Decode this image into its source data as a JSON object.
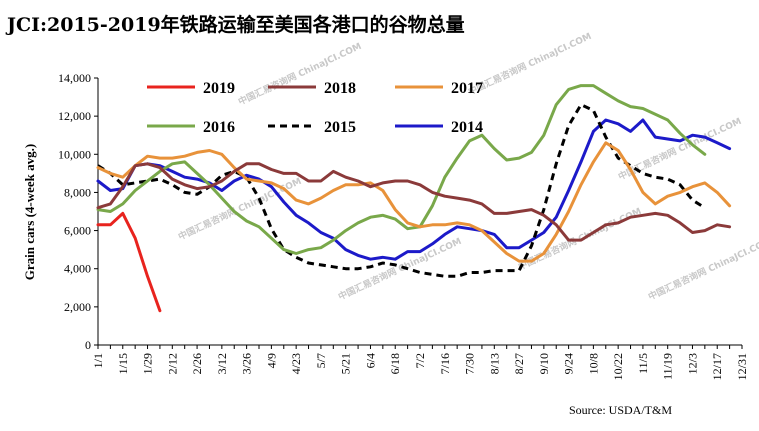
{
  "chart_data": {
    "type": "line",
    "title": "JCI:2015-2019年铁路运输至美国各港口的谷物总量",
    "ylabel": "Grain cars (4-week avg.)",
    "xlabel": "",
    "source": "Source: USDA/T&M",
    "watermark": "中国汇易咨询网 ChinaJCI.COM",
    "ylim": [
      0,
      14000
    ],
    "yticks": [
      "0",
      "2,000",
      "4,000",
      "6,000",
      "8,000",
      "10,000",
      "12,000",
      "14,000"
    ],
    "xticks": [
      "1/1",
      "1/15",
      "1/29",
      "2/12",
      "2/26",
      "3/12",
      "3/26",
      "4/9",
      "4/23",
      "5/7",
      "5/21",
      "6/4",
      "6/18",
      "7/2",
      "7/16",
      "7/30",
      "8/13",
      "8/27",
      "9/10",
      "9/24",
      "10/8",
      "10/22",
      "11/5",
      "11/19",
      "12/3",
      "12/17",
      "12/31"
    ],
    "x_unit": "week index (0 = 1/1, 52 = 12/31)",
    "xlim": [
      0,
      52
    ],
    "series": [
      {
        "name": "2019",
        "color": "#e8231e",
        "dash": "solid",
        "x": [
          0,
          1,
          2,
          3,
          4,
          5
        ],
        "y": [
          6300,
          6300,
          6900,
          5600,
          3600,
          1800
        ]
      },
      {
        "name": "2018",
        "color": "#8b3a3a",
        "dash": "solid",
        "x": [
          0,
          1,
          2,
          3,
          4,
          5,
          6,
          7,
          8,
          9,
          10,
          11,
          12,
          13,
          14,
          15,
          16,
          17,
          18,
          19,
          20,
          21,
          22,
          23,
          24,
          25,
          26,
          27,
          28,
          29,
          30,
          31,
          32,
          33,
          34,
          35,
          36,
          37,
          38,
          39,
          40,
          41,
          42,
          43,
          44,
          45,
          46,
          47,
          48,
          49,
          50,
          51
        ],
        "y": [
          7200,
          7400,
          8300,
          9400,
          9500,
          9300,
          8700,
          8400,
          8200,
          8300,
          8600,
          9100,
          9500,
          9500,
          9200,
          9000,
          9000,
          8600,
          8600,
          9100,
          8800,
          8600,
          8300,
          8500,
          8600,
          8600,
          8400,
          8000,
          7800,
          7700,
          7600,
          7400,
          6900,
          6900,
          7000,
          7100,
          6800,
          6300,
          5500,
          5500,
          5900,
          6300,
          6400,
          6700,
          6800,
          6900,
          6800,
          6400,
          5900,
          6000,
          6300,
          6200
        ]
      },
      {
        "name": "2017",
        "color": "#e8923a",
        "dash": "solid",
        "x": [
          0,
          1,
          2,
          3,
          4,
          5,
          6,
          7,
          8,
          9,
          10,
          11,
          12,
          13,
          14,
          15,
          16,
          17,
          18,
          19,
          20,
          21,
          22,
          23,
          24,
          25,
          26,
          27,
          28,
          29,
          30,
          31,
          32,
          33,
          34,
          35,
          36,
          37,
          38,
          39,
          40,
          41,
          42,
          43,
          44,
          45,
          46,
          47,
          48,
          49,
          50,
          51
        ],
        "y": [
          9300,
          9000,
          8800,
          9400,
          9900,
          9800,
          9800,
          9900,
          10100,
          10200,
          10000,
          9300,
          8700,
          8600,
          8500,
          8200,
          7600,
          7400,
          7700,
          8100,
          8400,
          8400,
          8500,
          8100,
          7100,
          6400,
          6200,
          6300,
          6300,
          6400,
          6300,
          6000,
          5400,
          4800,
          4400,
          4400,
          4800,
          5800,
          7000,
          8400,
          9600,
          10600,
          10200,
          9200,
          8000,
          7400,
          7800,
          8000,
          8300,
          8500,
          8000,
          7300
        ]
      },
      {
        "name": "2016",
        "color": "#79a84a",
        "dash": "solid",
        "x": [
          0,
          1,
          2,
          3,
          4,
          5,
          6,
          7,
          8,
          9,
          10,
          11,
          12,
          13,
          14,
          15,
          16,
          17,
          18,
          19,
          20,
          21,
          22,
          23,
          24,
          25,
          26,
          27,
          28,
          29,
          30,
          31,
          32,
          33,
          34,
          35,
          36,
          37,
          38,
          39,
          40,
          41,
          42,
          43,
          44,
          45,
          46,
          47,
          48,
          49,
          50,
          51
        ],
        "y": [
          7100,
          7000,
          7400,
          8100,
          8600,
          9100,
          9500,
          9600,
          9000,
          8400,
          7700,
          7000,
          6500,
          6200,
          5600,
          5000,
          4800,
          5000,
          5100,
          5500,
          6000,
          6400,
          6700,
          6800,
          6600,
          6100,
          6200,
          7300,
          8800,
          9800,
          10700,
          11000,
          10300,
          9700,
          9800,
          10100,
          11000,
          12600,
          13400,
          13600,
          13600,
          13200,
          12800,
          12500,
          12400,
          12100,
          11800,
          11100,
          10500,
          10000,
          null,
          null
        ]
      },
      {
        "name": "2015",
        "color": "#000000",
        "dash": "dashed",
        "x": [
          0,
          1,
          2,
          3,
          4,
          5,
          6,
          7,
          8,
          9,
          10,
          11,
          12,
          13,
          14,
          15,
          16,
          17,
          18,
          19,
          20,
          21,
          22,
          23,
          24,
          25,
          26,
          27,
          28,
          29,
          30,
          31,
          32,
          33,
          34,
          35,
          36,
          37,
          38,
          39,
          40,
          41,
          42,
          43,
          44,
          45,
          46,
          47,
          48,
          49,
          50,
          51
        ],
        "y": [
          9400,
          9000,
          8400,
          8500,
          8600,
          8700,
          8400,
          8000,
          7900,
          8300,
          8900,
          9100,
          8800,
          7700,
          6100,
          5000,
          4600,
          4300,
          4200,
          4100,
          4000,
          4000,
          4100,
          4300,
          4200,
          4000,
          3800,
          3700,
          3600,
          3600,
          3800,
          3800,
          3900,
          3900,
          3900,
          5200,
          7100,
          9500,
          11500,
          12600,
          12300,
          10900,
          9800,
          9400,
          9000,
          8800,
          8700,
          8400,
          7600,
          7200,
          null,
          null
        ]
      },
      {
        "name": "2014",
        "color": "#1c1ac9",
        "dash": "solid",
        "x": [
          0,
          1,
          2,
          3,
          4,
          5,
          6,
          7,
          8,
          9,
          10,
          11,
          12,
          13,
          14,
          15,
          16,
          17,
          18,
          19,
          20,
          21,
          22,
          23,
          24,
          25,
          26,
          27,
          28,
          29,
          30,
          31,
          32,
          33,
          34,
          35,
          36,
          37,
          38,
          39,
          40,
          41,
          42,
          43,
          44,
          45,
          46,
          47,
          48,
          49,
          50,
          51,
          52
        ],
        "y": [
          8600,
          8100,
          8200,
          9400,
          9500,
          9400,
          9100,
          8800,
          8700,
          8500,
          8100,
          8600,
          8900,
          8700,
          8300,
          7500,
          6800,
          6400,
          5900,
          5600,
          5000,
          4700,
          4500,
          4600,
          4500,
          4900,
          4900,
          5300,
          5800,
          6200,
          6100,
          6000,
          5800,
          5100,
          5100,
          5500,
          5900,
          6700,
          8100,
          9600,
          11200,
          11800,
          11600,
          11200,
          11800,
          10900,
          10800,
          10700,
          11000,
          10900,
          10600,
          10300,
          null
        ]
      }
    ],
    "legend": [
      "2019",
      "2018",
      "2017",
      "2016",
      "2015",
      "2014"
    ]
  }
}
